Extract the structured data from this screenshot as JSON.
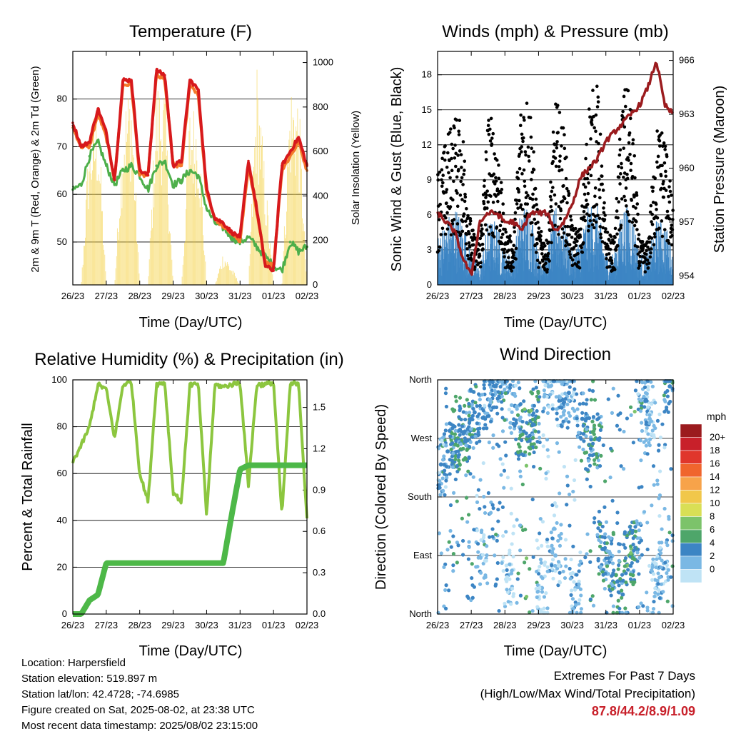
{
  "titles": {
    "temperature": "Temperature (F)",
    "winds": "Winds (mph) & Pressure (mb)",
    "humidity": "Relative Humidity (%) & Precipitation (in)",
    "direction": "Wind Direction"
  },
  "time_axis_label": "Time (Day/UTC)",
  "x_ticks": [
    "26/23",
    "27/23",
    "28/23",
    "29/23",
    "30/23",
    "31/23",
    "01/23",
    "02/23"
  ],
  "temperature": {
    "left_label": "2m & 9m T (Red, Orange) & 2m Td (Green)",
    "right_label": "Solar Insolation (Yellow)",
    "left_ticks": [
      "50",
      "60",
      "70",
      "80"
    ],
    "right_ticks": [
      "0",
      "200",
      "400",
      "600",
      "800",
      "1000"
    ]
  },
  "winds": {
    "left_label": "Sonic Wind & Gust (Blue, Black)",
    "right_label": "Station Pressure (Maroon)",
    "left_ticks": [
      "0",
      "3",
      "6",
      "9",
      "12",
      "15",
      "18"
    ],
    "right_ticks": [
      "954",
      "957",
      "960",
      "963",
      "966"
    ]
  },
  "humidity": {
    "left_label": "Percent & Total Rainfall",
    "left_ticks": [
      "0",
      "20",
      "40",
      "60",
      "80",
      "100"
    ],
    "right_ticks": [
      "0.0",
      "0.3",
      "0.6",
      "0.9",
      "1.2",
      "1.5"
    ]
  },
  "direction": {
    "left_label": "Direction (Colored By Speed)",
    "dir_ticks": [
      "North",
      "East",
      "South",
      "West",
      "North"
    ],
    "legend_title": "mph",
    "legend_labels": [
      "20+",
      "18",
      "16",
      "14",
      "12",
      "10",
      "8",
      "6",
      "4",
      "2",
      "0"
    ],
    "legend_colors": [
      "#9b1b1e",
      "#c8202a",
      "#e0362c",
      "#f0652d",
      "#f7a34a",
      "#f1c74a",
      "#d9df55",
      "#7cc36a",
      "#4ea66a",
      "#3c85c4",
      "#7ab8e4",
      "#bfe3f5"
    ]
  },
  "footer": {
    "location": "Location: Harpersfield",
    "elevation": "Station elevation: 519.897 m",
    "latlon": "Station lat/lon: 42.4728; -74.6985",
    "created": "Figure created on Sat, 2025-08-02, at 23:38 UTC",
    "recent": "Most recent data timestamp: 2025/08/02 23:15:00",
    "extremes_title": "Extremes For Past 7 Days",
    "extremes_sub": "(High/Low/Max Wind/Total Precipitation)",
    "extremes_values": "87.8/44.2/8.9/1.09"
  },
  "chart_data": [
    {
      "type": "line",
      "title": "Temperature (F)",
      "xlabel": "Time (Day/UTC)",
      "ylabel": "2m & 9m T (Red, Orange) & 2m Td (Green)",
      "y2label": "Solar Insolation (Yellow)",
      "x": [
        0,
        0.25,
        0.5,
        0.75,
        1,
        1.25,
        1.5,
        1.75,
        2,
        2.25,
        2.5,
        2.75,
        3,
        3.25,
        3.5,
        3.75,
        4,
        4.25,
        4.5,
        4.75,
        5,
        5.25,
        5.5,
        5.75,
        6,
        6.25,
        6.5,
        6.75,
        7
      ],
      "ylim": [
        41,
        90
      ],
      "y2lim": [
        0,
        1050
      ],
      "series": [
        {
          "name": "2m T",
          "color": "#d7191c",
          "values": [
            75,
            70,
            71,
            78,
            73,
            63,
            84,
            84,
            65,
            64,
            86,
            85,
            66,
            67,
            84,
            82,
            61,
            55,
            54,
            52,
            51,
            67,
            57,
            45,
            44,
            66,
            69,
            72,
            66
          ]
        },
        {
          "name": "9m T",
          "color": "#f4792b",
          "values": [
            74,
            70,
            70,
            77,
            72,
            63,
            83,
            83,
            64,
            64,
            85,
            84,
            66,
            66,
            83,
            81,
            60,
            55,
            53,
            52,
            50,
            66,
            56,
            46,
            45,
            65,
            68,
            71,
            65
          ]
        },
        {
          "name": "2m Td",
          "color": "#4daf4a",
          "values": [
            61,
            62,
            68,
            71,
            66,
            62,
            65,
            66,
            64,
            61,
            66,
            67,
            62,
            63,
            65,
            64,
            57,
            54,
            53,
            51,
            50,
            51,
            49,
            47,
            45,
            44,
            50,
            48,
            49
          ]
        },
        {
          "name": "Solar Insolation",
          "axis": "right",
          "color": "#f4d03f",
          "values": [
            0,
            0,
            700,
            800,
            0,
            0,
            780,
            920,
            0,
            0,
            900,
            880,
            0,
            0,
            800,
            780,
            0,
            0,
            150,
            80,
            0,
            0,
            980,
            500,
            0,
            0,
            900,
            850,
            0
          ]
        }
      ]
    },
    {
      "type": "line",
      "title": "Winds (mph) & Pressure (mb)",
      "xlabel": "Time (Day/UTC)",
      "ylabel": "Sonic Wind & Gust (Blue, Black)",
      "y2label": "Station Pressure (Maroon)",
      "x": [
        0,
        0.25,
        0.5,
        0.75,
        1,
        1.25,
        1.5,
        1.75,
        2,
        2.25,
        2.5,
        2.75,
        3,
        3.25,
        3.5,
        3.75,
        4,
        4.25,
        4.5,
        4.75,
        5,
        5.25,
        5.5,
        5.75,
        6,
        6.25,
        6.5,
        6.75,
        7
      ],
      "ylim": [
        0,
        20
      ],
      "y2lim": [
        953.5,
        966.5
      ],
      "series": [
        {
          "name": "Wind",
          "color": "#3c85c4",
          "values": [
            3,
            4,
            5,
            4,
            2,
            1,
            4,
            4,
            2,
            2,
            5,
            5,
            2,
            2,
            5,
            4,
            2,
            3,
            5,
            5,
            2,
            2,
            5,
            5,
            2,
            2,
            4,
            4,
            2
          ]
        },
        {
          "name": "Gust",
          "color": "#000000",
          "values": [
            8,
            10,
            12,
            11,
            4,
            3,
            12,
            11,
            4,
            3,
            14,
            13,
            4,
            3,
            13,
            11,
            4,
            4,
            13,
            14,
            4,
            3,
            14,
            13,
            3,
            3,
            11,
            11,
            5
          ]
        },
        {
          "name": "Station Pressure",
          "axis": "right",
          "color": "#9b1b1e",
          "values": [
            957.5,
            957,
            956.5,
            955,
            954,
            957,
            957.5,
            957.5,
            957,
            957,
            956.5,
            957.5,
            957.5,
            957.5,
            956.5,
            957,
            958,
            959.5,
            960,
            960.5,
            961.5,
            962,
            962.5,
            963,
            963.5,
            964.5,
            966,
            963.5,
            963
          ]
        }
      ]
    },
    {
      "type": "line",
      "title": "Relative Humidity (%) & Precipitation (in)",
      "xlabel": "Time (Day/UTC)",
      "ylabel": "Percent & Total Rainfall",
      "x": [
        0,
        0.25,
        0.5,
        0.75,
        1,
        1.25,
        1.5,
        1.75,
        2,
        2.25,
        2.5,
        2.75,
        3,
        3.25,
        3.5,
        3.75,
        4,
        4.25,
        4.5,
        4.75,
        5,
        5.25,
        5.5,
        5.75,
        6,
        6.25,
        6.5,
        6.75,
        7
      ],
      "ylim": [
        0,
        100
      ],
      "y2lim": [
        0,
        1.7
      ],
      "series": [
        {
          "name": "Relative Humidity",
          "color": "#8cc63f",
          "values": [
            65,
            72,
            80,
            98,
            96,
            75,
            98,
            99,
            60,
            48,
            98,
            99,
            52,
            48,
            98,
            98,
            42,
            98,
            97,
            98,
            99,
            55,
            98,
            98,
            99,
            42,
            98,
            99,
            40
          ]
        },
        {
          "name": "Total Precipitation",
          "axis": "right",
          "color": "#4db848",
          "values": [
            0,
            0,
            0.1,
            0.14,
            0.37,
            0.37,
            0.37,
            0.37,
            0.37,
            0.37,
            0.37,
            0.37,
            0.37,
            0.37,
            0.37,
            0.37,
            0.37,
            0.37,
            0.37,
            0.72,
            1.05,
            1.08,
            1.08,
            1.08,
            1.08,
            1.08,
            1.08,
            1.08,
            1.08
          ]
        }
      ]
    },
    {
      "type": "scatter",
      "title": "Wind Direction",
      "xlabel": "Time (Day/UTC)",
      "ylabel": "Direction (Colored By Speed)",
      "ylim": [
        0,
        360
      ],
      "x": [
        0.1,
        0.3,
        0.5,
        0.6,
        0.8,
        1.0,
        1.1,
        1.3,
        1.5,
        1.7,
        1.9,
        2.1,
        2.3,
        2.5,
        2.7,
        2.9,
        3.1,
        3.3,
        3.5,
        3.7,
        3.9,
        4.1,
        4.3,
        4.5,
        4.7,
        4.9,
        5.1,
        5.3,
        5.5,
        5.7,
        5.9,
        6.1,
        6.3,
        6.5,
        6.7,
        6.9
      ],
      "y": [
        230,
        250,
        260,
        270,
        280,
        300,
        310,
        90,
        330,
        350,
        340,
        60,
        320,
        280,
        270,
        300,
        40,
        350,
        90,
        330,
        340,
        40,
        300,
        260,
        270,
        100,
        80,
        60,
        30,
        90,
        100,
        330,
        300,
        40,
        70,
        350
      ],
      "speed": [
        3,
        4,
        5,
        5,
        5,
        4,
        4,
        2,
        4,
        3,
        4,
        1,
        3,
        5,
        6,
        5,
        1,
        2,
        2,
        3,
        3,
        2,
        4,
        5,
        5,
        4,
        4,
        5,
        4,
        6,
        4,
        3,
        2,
        2,
        3,
        4
      ]
    }
  ]
}
